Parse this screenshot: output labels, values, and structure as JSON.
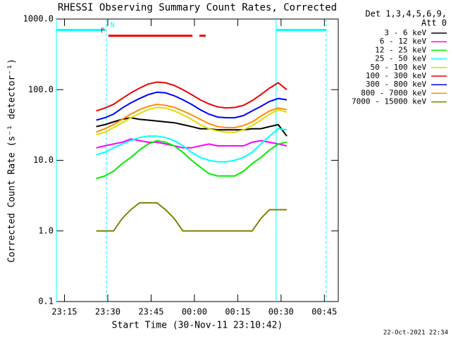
{
  "chart_data": {
    "type": "line",
    "title": "RHESSI Observing Summary Count Rates, Corrected",
    "x_label": "Start Time (30-Nov-11 23:10:42)",
    "y_label": "Corrected Count Rate (s⁻¹ detector⁻¹)",
    "info": [
      "Det 1,3,4,5,6,9,",
      "Att 0"
    ],
    "footer": "22-Oct-2021 22:34",
    "log_y": true,
    "xlim": [
      12.2,
      109.8
    ],
    "ylim": [
      0.1,
      1000
    ],
    "xticks": [
      {
        "value": 15,
        "label": "23:15"
      },
      {
        "value": 30,
        "label": "23:30"
      },
      {
        "value": 45,
        "label": "23:45"
      },
      {
        "value": 60,
        "label": "00:00"
      },
      {
        "value": 75,
        "label": "00:15"
      },
      {
        "value": 90,
        "label": "00:30"
      },
      {
        "value": 105,
        "label": "00:45"
      }
    ],
    "yticks": [
      {
        "value": 0.1,
        "label": "0.1"
      },
      {
        "value": 1,
        "label": "1.0"
      },
      {
        "value": 10,
        "label": "10.0"
      },
      {
        "value": 100,
        "label": "100.0"
      },
      {
        "value": 1000,
        "label": "1000.0"
      }
    ],
    "x": [
      26,
      29,
      32,
      35,
      38,
      41,
      44,
      47,
      50,
      53,
      56,
      59,
      62,
      65,
      68,
      71,
      74,
      77,
      80,
      83,
      86,
      89,
      92
    ],
    "series": [
      {
        "name": "3 - 6 keV",
        "color": "#000000",
        "values": [
          30,
          32,
          35,
          38,
          40,
          38,
          37,
          36,
          35,
          34,
          32,
          30,
          28,
          28,
          27,
          27,
          27,
          27,
          28,
          28,
          30,
          32,
          22
        ]
      },
      {
        "name": "6 - 12 keV",
        "color": "#ff00ff",
        "values": [
          15,
          16,
          17,
          18,
          20,
          19,
          18,
          18,
          17,
          16,
          15,
          15,
          16,
          17,
          16,
          16,
          16,
          16,
          18,
          19,
          18,
          17,
          16
        ]
      },
      {
        "name": "12 - 25 keV",
        "color": "#00ee00",
        "values": [
          5.5,
          6,
          7,
          9,
          11,
          14,
          17,
          19,
          18,
          16,
          13,
          10,
          8,
          6.5,
          6,
          6,
          6,
          7,
          9,
          11,
          14,
          17,
          18
        ]
      },
      {
        "name": "25 - 50 keV",
        "color": "#00ffff",
        "values": [
          12,
          13,
          15,
          17,
          19,
          21,
          22,
          22,
          21,
          19,
          16,
          13,
          11,
          10,
          9.5,
          9.5,
          10,
          11,
          13,
          17,
          22,
          28,
          27
        ]
      },
      {
        "name": "50 - 100 keV",
        "color": "#dddd00",
        "values": [
          23,
          25,
          29,
          34,
          40,
          46,
          52,
          56,
          55,
          50,
          44,
          38,
          32,
          28,
          26,
          25,
          25,
          27,
          31,
          37,
          45,
          52,
          48
        ]
      },
      {
        "name": "100 - 300 keV",
        "color": "#ee0000",
        "values": [
          50,
          55,
          62,
          75,
          90,
          105,
          120,
          128,
          125,
          115,
          100,
          85,
          72,
          63,
          57,
          55,
          56,
          60,
          70,
          85,
          105,
          125,
          100
        ]
      },
      {
        "name": "300 - 800 keV",
        "color": "#0000ff",
        "values": [
          37,
          40,
          45,
          55,
          65,
          75,
          85,
          92,
          90,
          82,
          72,
          62,
          52,
          45,
          41,
          40,
          40,
          43,
          50,
          58,
          68,
          75,
          72
        ]
      },
      {
        "name": "800 - 7000 keV",
        "color": "#ff8c00",
        "values": [
          25,
          28,
          32,
          38,
          45,
          52,
          58,
          62,
          60,
          56,
          50,
          44,
          38,
          33,
          30,
          29,
          29,
          31,
          35,
          42,
          50,
          55,
          52
        ]
      },
      {
        "name": "7000 - 15000 keV",
        "color": "#808000",
        "values": [
          1,
          1,
          1,
          1.5,
          2,
          2.5,
          2.5,
          2.5,
          2,
          1.5,
          1,
          1,
          1,
          1,
          1,
          1,
          1,
          1,
          1,
          1.5,
          2,
          2,
          2
        ]
      }
    ],
    "vlines": [
      {
        "x": 12.2,
        "style": "solid",
        "color": "#00ffff"
      },
      {
        "x": 29.5,
        "style": "dashed",
        "color": "#00ffff"
      },
      {
        "x": 88.3,
        "style": "solid",
        "color": "#00ffff"
      },
      {
        "x": 105.6,
        "style": "dashed",
        "color": "#00ffff"
      }
    ],
    "flags": [
      {
        "label": "N",
        "color": "#00ffff",
        "level": 700,
        "intervals": [
          [
            12.2,
            29.2
          ],
          [
            88.3,
            105.6
          ]
        ]
      },
      {
        "label": "F",
        "color": "#ee0000",
        "level": 580,
        "intervals": [
          [
            30.2,
            59.3
          ],
          [
            61.7,
            63.9
          ]
        ]
      }
    ]
  }
}
